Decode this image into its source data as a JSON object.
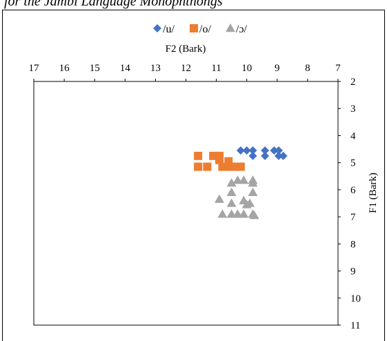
{
  "caption": "for the Jambi Language Monophthongs",
  "chart_data": {
    "type": "scatter",
    "x_axis": {
      "label": "F2 (Bark)",
      "min": 7,
      "max": 17,
      "reversed": true,
      "position": "top",
      "ticks": [
        "17",
        "16",
        "15",
        "14",
        "13",
        "12",
        "11",
        "10",
        "9",
        "8",
        "7"
      ]
    },
    "y_axis": {
      "label": "F1 (Bark)",
      "min": 2,
      "max": 11,
      "reversed": true,
      "position": "right",
      "ticks": [
        "2",
        "3",
        "4",
        "5",
        "6",
        "7",
        "8",
        "9",
        "10",
        "11"
      ]
    },
    "grid": false,
    "legend": "top",
    "series": [
      {
        "name": "/u/",
        "marker": "diamond",
        "color": "#4472C4",
        "points": [
          [
            10.2,
            4.55
          ],
          [
            10.0,
            4.55
          ],
          [
            9.8,
            4.55
          ],
          [
            9.4,
            4.55
          ],
          [
            9.1,
            4.55
          ],
          [
            8.95,
            4.55
          ],
          [
            9.8,
            4.75
          ],
          [
            9.4,
            4.75
          ],
          [
            8.95,
            4.75
          ],
          [
            8.8,
            4.75
          ]
        ]
      },
      {
        "name": "/o/",
        "marker": "square",
        "color": "#ED7D31",
        "points": [
          [
            11.6,
            4.75
          ],
          [
            11.1,
            4.75
          ],
          [
            10.9,
            4.75
          ],
          [
            10.9,
            4.9
          ],
          [
            10.6,
            4.95
          ],
          [
            11.6,
            5.15
          ],
          [
            11.3,
            5.15
          ],
          [
            10.8,
            5.15
          ],
          [
            10.6,
            5.15
          ],
          [
            10.4,
            5.15
          ],
          [
            10.2,
            5.15
          ]
        ]
      },
      {
        "name": "/ɔ/",
        "marker": "triangle",
        "color": "#A5A5A5",
        "points": [
          [
            10.3,
            5.65
          ],
          [
            10.1,
            5.65
          ],
          [
            9.8,
            5.65
          ],
          [
            10.5,
            5.75
          ],
          [
            9.8,
            5.75
          ],
          [
            10.5,
            6.1
          ],
          [
            9.8,
            6.1
          ],
          [
            10.9,
            6.35
          ],
          [
            10.1,
            6.4
          ],
          [
            10.5,
            6.5
          ],
          [
            9.9,
            6.5
          ],
          [
            10.0,
            6.55
          ],
          [
            10.8,
            6.9
          ],
          [
            10.5,
            6.9
          ],
          [
            10.3,
            6.9
          ],
          [
            10.1,
            6.9
          ],
          [
            9.8,
            6.9
          ],
          [
            9.75,
            6.95
          ]
        ]
      }
    ]
  }
}
